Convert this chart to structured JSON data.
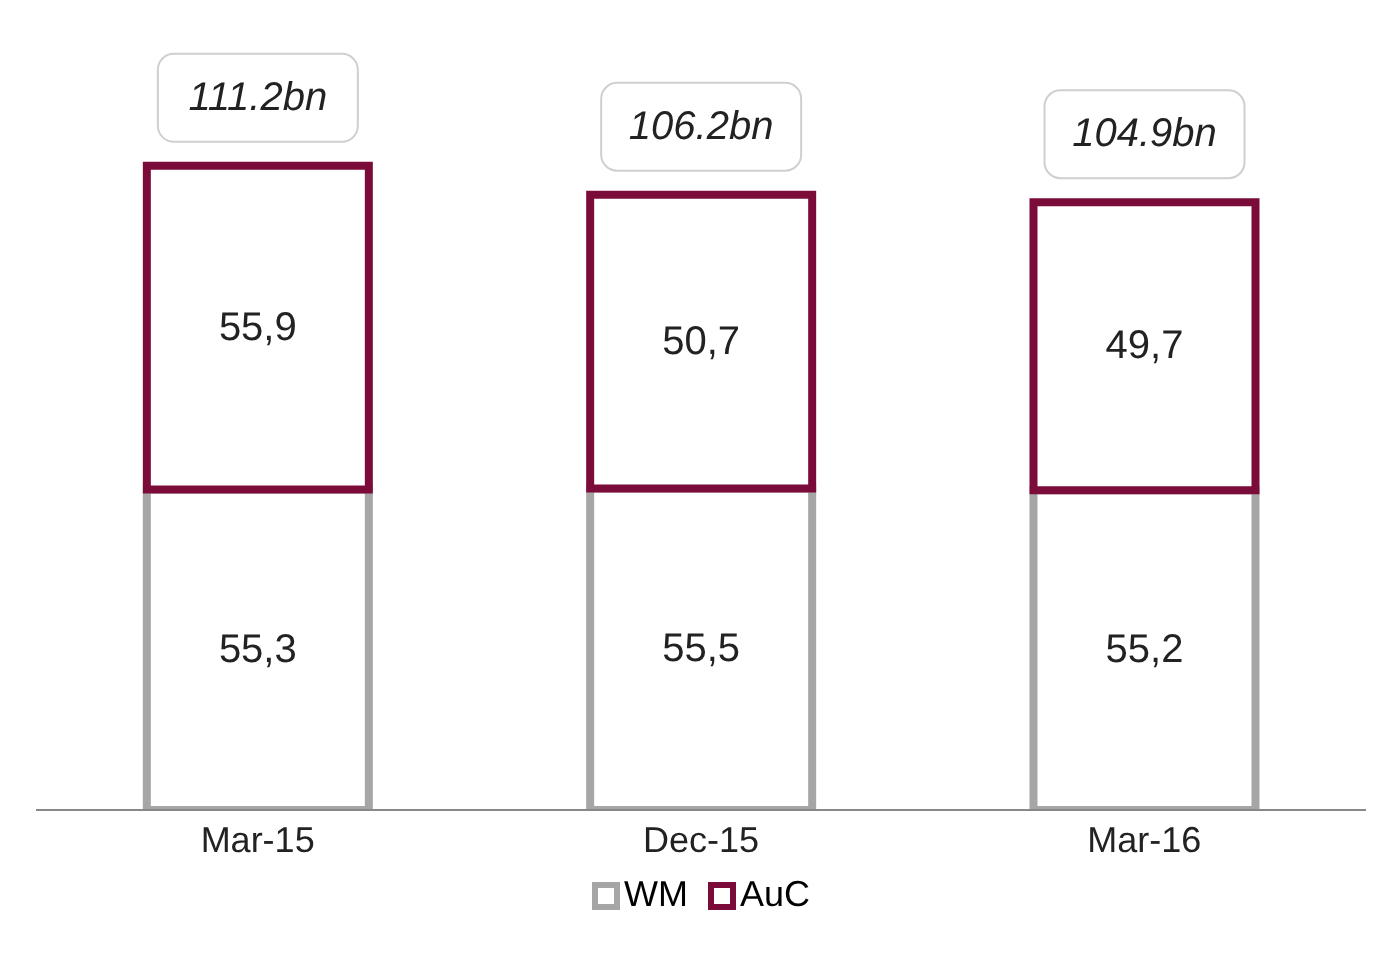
{
  "chart_data": {
    "type": "bar",
    "stacked": true,
    "categories": [
      "Mar-15",
      "Dec-15",
      "Mar-16"
    ],
    "series": [
      {
        "name": "WM",
        "color": "#a6a6a6",
        "values": [
          55.3,
          55.5,
          55.2
        ],
        "value_labels": [
          "55,3",
          "55,5",
          "55,2"
        ]
      },
      {
        "name": "AuC",
        "color": "#7b0c3a",
        "values": [
          55.9,
          50.7,
          49.7
        ],
        "value_labels": [
          "55,9",
          "50,7",
          "49,7"
        ]
      }
    ],
    "totals": [
      "111.2bn",
      "106.2bn",
      "104.9bn"
    ],
    "legend": "bottom",
    "grid": false
  }
}
